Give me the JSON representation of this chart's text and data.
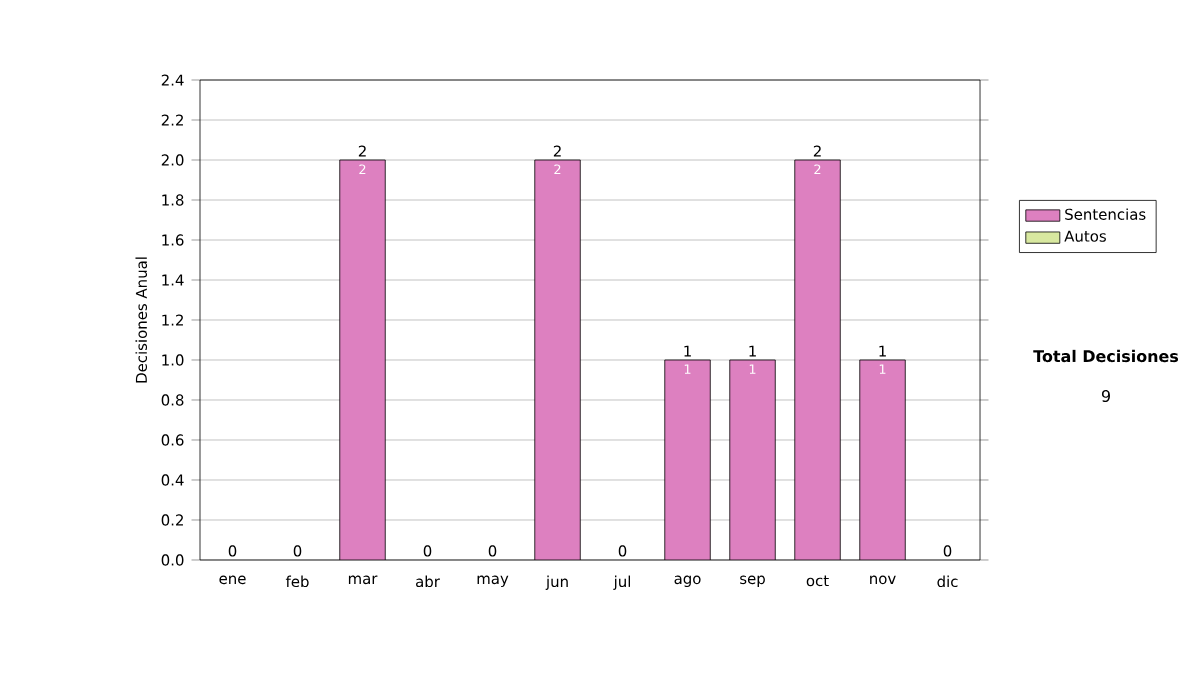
{
  "chart_data": {
    "type": "bar",
    "stacked": true,
    "ylabel": "Decisiones Anual",
    "categories": [
      "ene",
      "feb",
      "mar",
      "abr",
      "may",
      "jun",
      "jul",
      "ago",
      "sep",
      "oct",
      "nov",
      "dic"
    ],
    "series": [
      {
        "name": "Sentencias",
        "color": "#dd80c0",
        "values": [
          0,
          0,
          2,
          0,
          0,
          2,
          0,
          1,
          1,
          2,
          1,
          0
        ],
        "value_labels": [
          null,
          null,
          "2",
          null,
          null,
          "2",
          null,
          "1",
          "1",
          "2",
          "1",
          null
        ]
      },
      {
        "name": "Autos",
        "color": "#d8e8a0",
        "values": [
          0,
          0,
          0,
          0,
          0,
          0,
          0,
          0,
          0,
          0,
          0,
          0
        ]
      }
    ],
    "totals": [
      "0",
      "0",
      "2",
      "0",
      "0",
      "2",
      "0",
      "1",
      "1",
      "2",
      "1",
      "0"
    ],
    "ylim": [
      0,
      2.4
    ],
    "yticks": [
      {
        "value": 0,
        "label": "0.0"
      },
      0.2,
      0.4,
      0.6,
      0.8,
      {
        "value": 1,
        "label": "1.0"
      },
      1.2,
      1.4,
      1.6,
      1.8,
      {
        "value": 2,
        "label": "2.0"
      },
      2.2,
      2.4
    ],
    "grid": "y",
    "legend": "right",
    "annotations": [
      "Total Decisiones",
      "9"
    ]
  }
}
